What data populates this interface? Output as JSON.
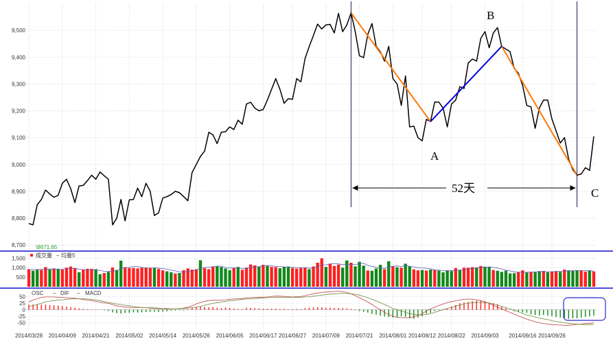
{
  "chart_data": {
    "type": "line",
    "main": {
      "ylim": [
        8680,
        9600
      ],
      "yticks": [
        8700,
        8800,
        8900,
        9000,
        9100,
        9200,
        9300,
        9400,
        9500
      ],
      "ytick_labels": [
        "8,700",
        "8,800",
        "8,900",
        "9,000",
        "9,100",
        "9,200",
        "9,300",
        "9,400",
        "9,500"
      ],
      "series": [
        {
          "color": "#000000",
          "values": [
            8780,
            8775,
            8850,
            8870,
            8905,
            8890,
            8878,
            8885,
            8930,
            8945,
            8910,
            8858,
            8920,
            8922,
            8940,
            8960,
            8945,
            8972,
            8958,
            8945,
            8775,
            8800,
            8870,
            8790,
            8868,
            8870,
            8912,
            8880,
            8930,
            8900,
            8810,
            8820,
            8875,
            8880,
            8888,
            8900,
            8895,
            8880,
            8865,
            8970,
            9000,
            9030,
            9050,
            9120,
            9110,
            9078,
            9120,
            9122,
            9140,
            9130,
            9165,
            9150,
            9225,
            9232,
            9210,
            9200,
            9205,
            9240,
            9280,
            9320,
            9280,
            9228,
            9245,
            9243,
            9320,
            9308,
            9395,
            9440,
            9480,
            9523,
            9505,
            9520,
            9522,
            9490,
            9563,
            9495,
            9520,
            9565,
            9495,
            9405,
            9398,
            9485,
            9525,
            9440,
            9420,
            9385,
            9440,
            9320,
            9300,
            9220,
            9330,
            9140,
            9143,
            9100,
            9088,
            9168,
            9160,
            9233,
            9232,
            9210,
            9140,
            9225,
            9240,
            9290,
            9283,
            9378,
            9393,
            9385,
            9470,
            9495,
            9435,
            9490,
            9510,
            9440,
            9430,
            9420,
            9358,
            9340,
            9295,
            9220,
            9215,
            9135,
            9210,
            9240,
            9240,
            9170,
            9125,
            9080,
            9100,
            9020,
            8980,
            8960,
            8965,
            8988,
            8978,
            9105
          ]
        }
      ],
      "overlays": {
        "orange_segments": [
          [
            77,
            96
          ],
          [
            113,
            131
          ]
        ],
        "blue_segment": [
          96,
          113
        ],
        "vertical_lines": [
          77,
          131
        ],
        "min_label": "8671.65"
      }
    },
    "volume": {
      "legend": [
        "成交量",
        "均量5"
      ],
      "ylim": [
        0,
        1800
      ],
      "yticks": [
        500,
        1000,
        1500
      ],
      "ytick_labels": [
        "500",
        "1,000",
        "1,500"
      ],
      "values": [
        920,
        840,
        910,
        880,
        1030,
        900,
        960,
        940,
        900,
        1000,
        1060,
        980,
        760,
        890,
        940,
        940,
        920,
        660,
        720,
        780,
        1010,
        880,
        1370,
        1020,
        980,
        980,
        960,
        1000,
        1010,
        970,
        990,
        930,
        860,
        810,
        760,
        690,
        720,
        870,
        960,
        900,
        920,
        1390,
        980,
        920,
        1050,
        1070,
        1040,
        960,
        870,
        990,
        1040,
        890,
        1000,
        1170,
        1120,
        1050,
        1150,
        1090,
        1040,
        1030,
        970,
        1050,
        1060,
        980,
        950,
        980,
        1010,
        920,
        1060,
        1260,
        1490,
        1040,
        1210,
        1090,
        1160,
        1000,
        1380,
        1260,
        1070,
        1310,
        1110,
        850,
        840,
        960,
        1150,
        920,
        1340,
        1060,
        1020,
        1000,
        1210,
        1070,
        910,
        860,
        880,
        850,
        900,
        890,
        850,
        760,
        860,
        820,
        980,
        870,
        1000,
        1000,
        1030,
        1000,
        1090,
        1050,
        1050,
        880,
        840,
        780,
        840,
        700,
        710,
        780,
        860,
        750,
        780,
        760,
        820,
        830,
        760,
        800,
        820,
        780,
        900,
        860,
        830,
        870,
        850,
        790,
        860,
        800
      ],
      "colors": [
        "r",
        "g",
        "g",
        "r",
        "r",
        "g",
        "r",
        "g",
        "r",
        "r",
        "r",
        "r",
        "g",
        "r",
        "r",
        "r",
        "g",
        "g",
        "r",
        "g",
        "r",
        "g",
        "g",
        "r",
        "r",
        "r",
        "r",
        "r",
        "r",
        "r",
        "g",
        "r",
        "r",
        "g",
        "g",
        "r",
        "g",
        "r",
        "r",
        "r",
        "r",
        "g",
        "r",
        "r",
        "r",
        "g",
        "g",
        "g",
        "g",
        "r",
        "g",
        "r",
        "r",
        "r",
        "r",
        "g",
        "r",
        "g",
        "r",
        "r",
        "g",
        "g",
        "g",
        "r",
        "r",
        "r",
        "r",
        "g",
        "r",
        "r",
        "r",
        "g",
        "r",
        "r",
        "r",
        "g",
        "g",
        "r",
        "g",
        "g",
        "g",
        "r",
        "g",
        "g",
        "g",
        "r",
        "g",
        "r",
        "g",
        "r",
        "g",
        "g",
        "r",
        "r",
        "g",
        "r",
        "g",
        "r",
        "g",
        "g",
        "g",
        "g",
        "r",
        "g",
        "r",
        "r",
        "r",
        "g",
        "r",
        "g",
        "g",
        "r",
        "g",
        "g",
        "g",
        "g",
        "g",
        "r",
        "r",
        "g",
        "r",
        "g",
        "g",
        "r",
        "g",
        "r",
        "r",
        "g",
        "r",
        "g",
        "g",
        "g",
        "r",
        "r",
        "g",
        "r"
      ],
      "ma5": [
        900,
        900,
        900,
        910,
        910,
        930,
        920,
        910,
        920,
        940,
        960,
        960,
        920,
        900,
        880,
        880,
        890,
        860,
        810,
        800,
        830,
        840,
        960,
        1010,
        1030,
        1050,
        1060,
        1010,
        990,
        990,
        990,
        980,
        950,
        920,
        880,
        830,
        790,
        770,
        800,
        830,
        870,
        980,
        1010,
        1030,
        1050,
        1080,
        1080,
        1010,
        980,
        990,
        980,
        960,
        970,
        1020,
        1040,
        1050,
        1100,
        1120,
        1090,
        1070,
        1060,
        1040,
        1030,
        1020,
        1000,
        1000,
        1000,
        980,
        980,
        1050,
        1140,
        1150,
        1200,
        1210,
        1200,
        1160,
        1170,
        1180,
        1170,
        1200,
        1230,
        1120,
        1070,
        1020,
        990,
        960,
        1050,
        1070,
        1090,
        1060,
        1130,
        1070,
        1040,
        1000,
        990,
        970,
        940,
        880,
        880,
        850,
        850,
        840,
        860,
        880,
        900,
        930,
        960,
        1000,
        1020,
        1030,
        1040,
        1010,
        980,
        920,
        870,
        830,
        780,
        760,
        760,
        760,
        770,
        780,
        790,
        800,
        790,
        790,
        800,
        810,
        820,
        830,
        840,
        850,
        850,
        840,
        840,
        820
      ]
    },
    "macd": {
      "legend": [
        "OSC",
        "DIF",
        "MACD"
      ],
      "ylim": [
        -75,
        75
      ],
      "yticks": [
        -50,
        -25,
        0,
        25,
        50
      ],
      "ytick_labels": [
        "-50",
        "-25",
        "0",
        "25",
        "50"
      ],
      "osc": [
        20,
        20,
        21,
        20,
        20,
        18,
        17,
        16,
        14,
        12,
        10,
        8,
        5,
        3,
        2,
        1,
        0,
        0,
        -2,
        -5,
        -10,
        -13,
        -15,
        -12,
        -12,
        -10,
        -11,
        -10,
        -9,
        -8,
        -8,
        -9,
        -8,
        -6,
        -4,
        -3,
        -2,
        -3,
        2,
        8,
        10,
        12,
        11,
        10,
        10,
        8,
        6,
        9,
        7,
        5,
        3,
        3,
        8,
        7,
        6,
        5,
        4,
        4,
        4,
        4,
        3,
        3,
        2,
        2,
        3,
        2,
        6,
        8,
        9,
        10,
        9,
        8,
        8,
        7,
        7,
        6,
        5,
        3,
        -2,
        -5,
        -8,
        -11,
        -16,
        -19,
        -23,
        -26,
        -28,
        -30,
        -29,
        -25,
        -27,
        -33,
        -35,
        -30,
        -25,
        -15,
        -12,
        -5,
        -2,
        2,
        5,
        12,
        18,
        25,
        28,
        30,
        33,
        35,
        35,
        33,
        28,
        25,
        22,
        12,
        6,
        0,
        -5,
        -8,
        -10,
        -12,
        -18,
        -20,
        -22,
        -20,
        -23,
        -25,
        -28,
        -30,
        -32,
        -35,
        -33,
        -33,
        -30,
        -27,
        -25,
        -22
      ],
      "dif": [
        30,
        37,
        43,
        47,
        49,
        49,
        49,
        48,
        47,
        46,
        45,
        44,
        42,
        39,
        37,
        35,
        32,
        29,
        26,
        24,
        20,
        15,
        13,
        10,
        9,
        8,
        9,
        8,
        8,
        6,
        5,
        4,
        4,
        3,
        4,
        4,
        5,
        6,
        10,
        15,
        22,
        28,
        32,
        35,
        36,
        37,
        37,
        38,
        40,
        41,
        42,
        43,
        45,
        46,
        47,
        48,
        48,
        49,
        51,
        52,
        52,
        51,
        50,
        49,
        50,
        51,
        54,
        58,
        61,
        64,
        66,
        68,
        69,
        70,
        71,
        69,
        66,
        61,
        54,
        46,
        38,
        30,
        20,
        10,
        0,
        -10,
        -18,
        -25,
        -29,
        -30,
        -31,
        -30,
        -27,
        -22,
        -15,
        -5,
        3,
        10,
        16,
        22,
        27,
        31,
        34,
        37,
        40,
        41,
        40,
        38,
        35,
        30,
        24,
        17,
        10,
        3,
        -4,
        -10,
        -17,
        -24,
        -30,
        -36,
        -41,
        -46,
        -50,
        -53,
        -55,
        -57,
        -58,
        -59,
        -60,
        -60,
        -58,
        -56,
        -55,
        -53,
        -52,
        -50
      ],
      "macd": [
        12,
        16,
        20,
        25,
        30,
        33,
        35,
        37,
        38,
        40,
        41,
        42,
        42,
        42,
        41,
        40,
        38,
        35,
        31,
        28,
        25,
        22,
        20,
        17,
        15,
        12,
        10,
        9,
        8,
        8,
        7,
        6,
        5,
        5,
        4,
        4,
        4,
        5,
        6,
        8,
        10,
        13,
        17,
        21,
        24,
        27,
        30,
        32,
        34,
        36,
        38,
        40,
        41,
        42,
        43,
        44,
        45,
        46,
        47,
        47,
        48,
        48,
        48,
        48,
        48,
        48,
        49,
        50,
        52,
        54,
        56,
        58,
        60,
        61,
        62,
        62,
        62,
        61,
        59,
        56,
        51,
        46,
        40,
        34,
        27,
        20,
        12,
        5,
        0,
        -5,
        -10,
        -15,
        -18,
        -20,
        -20,
        -18,
        -15,
        -10,
        -5,
        0,
        5,
        10,
        14,
        18,
        22,
        25,
        27,
        28,
        28,
        27,
        25,
        22,
        18,
        13,
        8,
        3,
        -3,
        -8,
        -14,
        -20,
        -24,
        -28,
        -32,
        -35,
        -38,
        -42,
        -45,
        -47,
        -50,
        -52,
        -54,
        -55,
        -56,
        -57,
        -57,
        -56
      ]
    },
    "x_tick_labels": [
      "2014/03/28",
      "2014/04/09",
      "2014/04/21",
      "2014/05/02",
      "2014/05/14",
      "2014/05/26",
      "2014/06/05",
      "2014/06/17",
      "2014/06/27",
      "2014/07/09",
      "2014/07/21",
      "2014/08/01",
      "2014/08/12",
      "2014/08/22",
      "2014/09/03",
      "2014/09/16",
      "2014/09/26"
    ],
    "x_tick_index": [
      0,
      8,
      16,
      24,
      32,
      40,
      48,
      56,
      63,
      71,
      79,
      87,
      94,
      101,
      109,
      118,
      125
    ],
    "annotations": {
      "A": "A",
      "B": "B",
      "C": "C",
      "duration": "52天"
    },
    "colors": {
      "price": "#000000",
      "orange": "#ff7700",
      "blue": "#0000dd",
      "divider": "#1010c8",
      "vertical": "#1a1a4a",
      "vol_red": "#ff2020",
      "vol_green": "#11881a",
      "ma5": "#5a5ab4",
      "dif": "#c04040",
      "macd_line": "#6a8a3a",
      "grid": "#cfcfcf",
      "min_label": "#2a9a2a"
    }
  }
}
